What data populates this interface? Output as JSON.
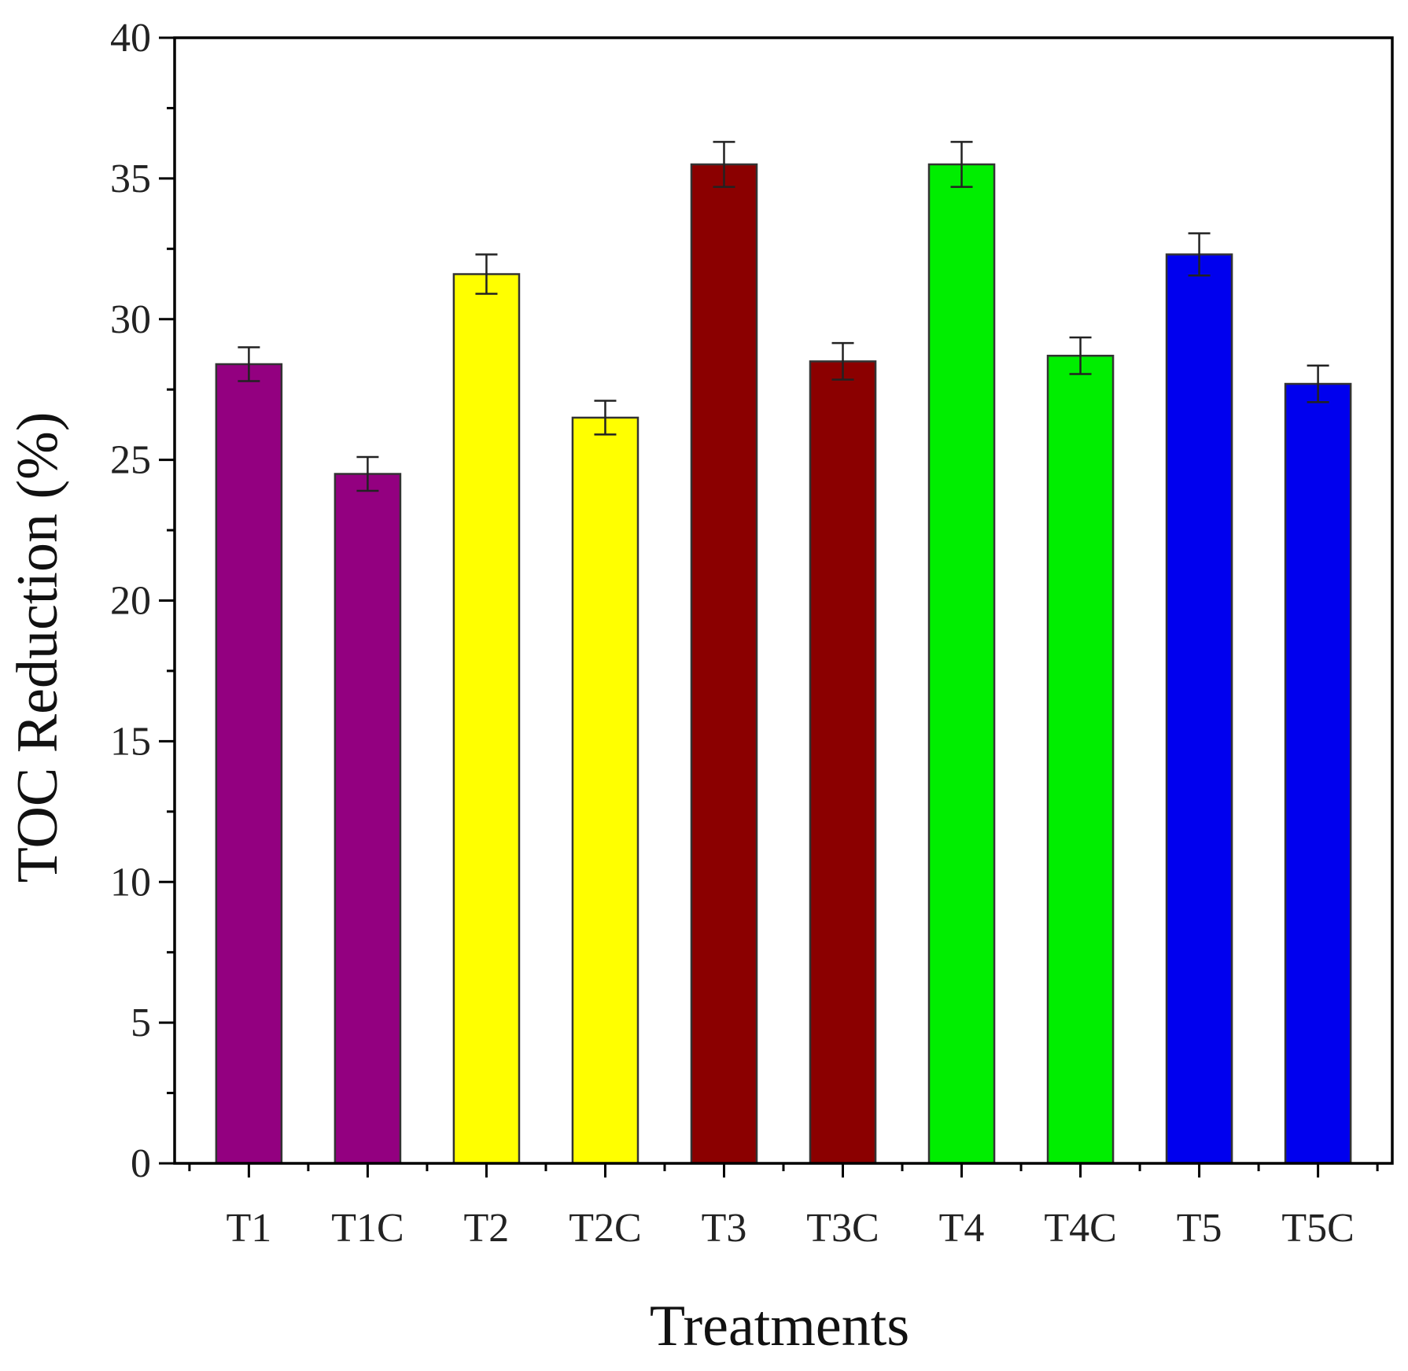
{
  "chart_data": {
    "type": "bar",
    "title": "",
    "xlabel": "Treatments",
    "ylabel": "TOC Reduction (%)",
    "ylim": [
      0,
      40
    ],
    "yticks": [
      0,
      5,
      10,
      15,
      20,
      25,
      30,
      35,
      40
    ],
    "ytick_labels": [
      "0",
      "5",
      "10",
      "15",
      "20",
      "25",
      "30",
      "35",
      "40"
    ],
    "grid": false,
    "categories": [
      "T1",
      "T1C",
      "T2",
      "T2C",
      "T3",
      "T3C",
      "T4",
      "T4C",
      "T5",
      "T5C"
    ],
    "values": [
      28.4,
      24.5,
      31.6,
      26.5,
      35.5,
      28.5,
      35.5,
      28.7,
      32.3,
      27.7
    ],
    "errors": [
      0.6,
      0.6,
      0.7,
      0.6,
      0.8,
      0.65,
      0.8,
      0.65,
      0.75,
      0.65
    ],
    "colors": [
      "#930080",
      "#930080",
      "#ffff00",
      "#ffff00",
      "#8b0000",
      "#8b0000",
      "#00ee00",
      "#00ee00",
      "#0000ee",
      "#0000ee"
    ],
    "bar_edge_color": "#333333",
    "error_bar_color": "#222222",
    "axis_color": "#000000"
  }
}
